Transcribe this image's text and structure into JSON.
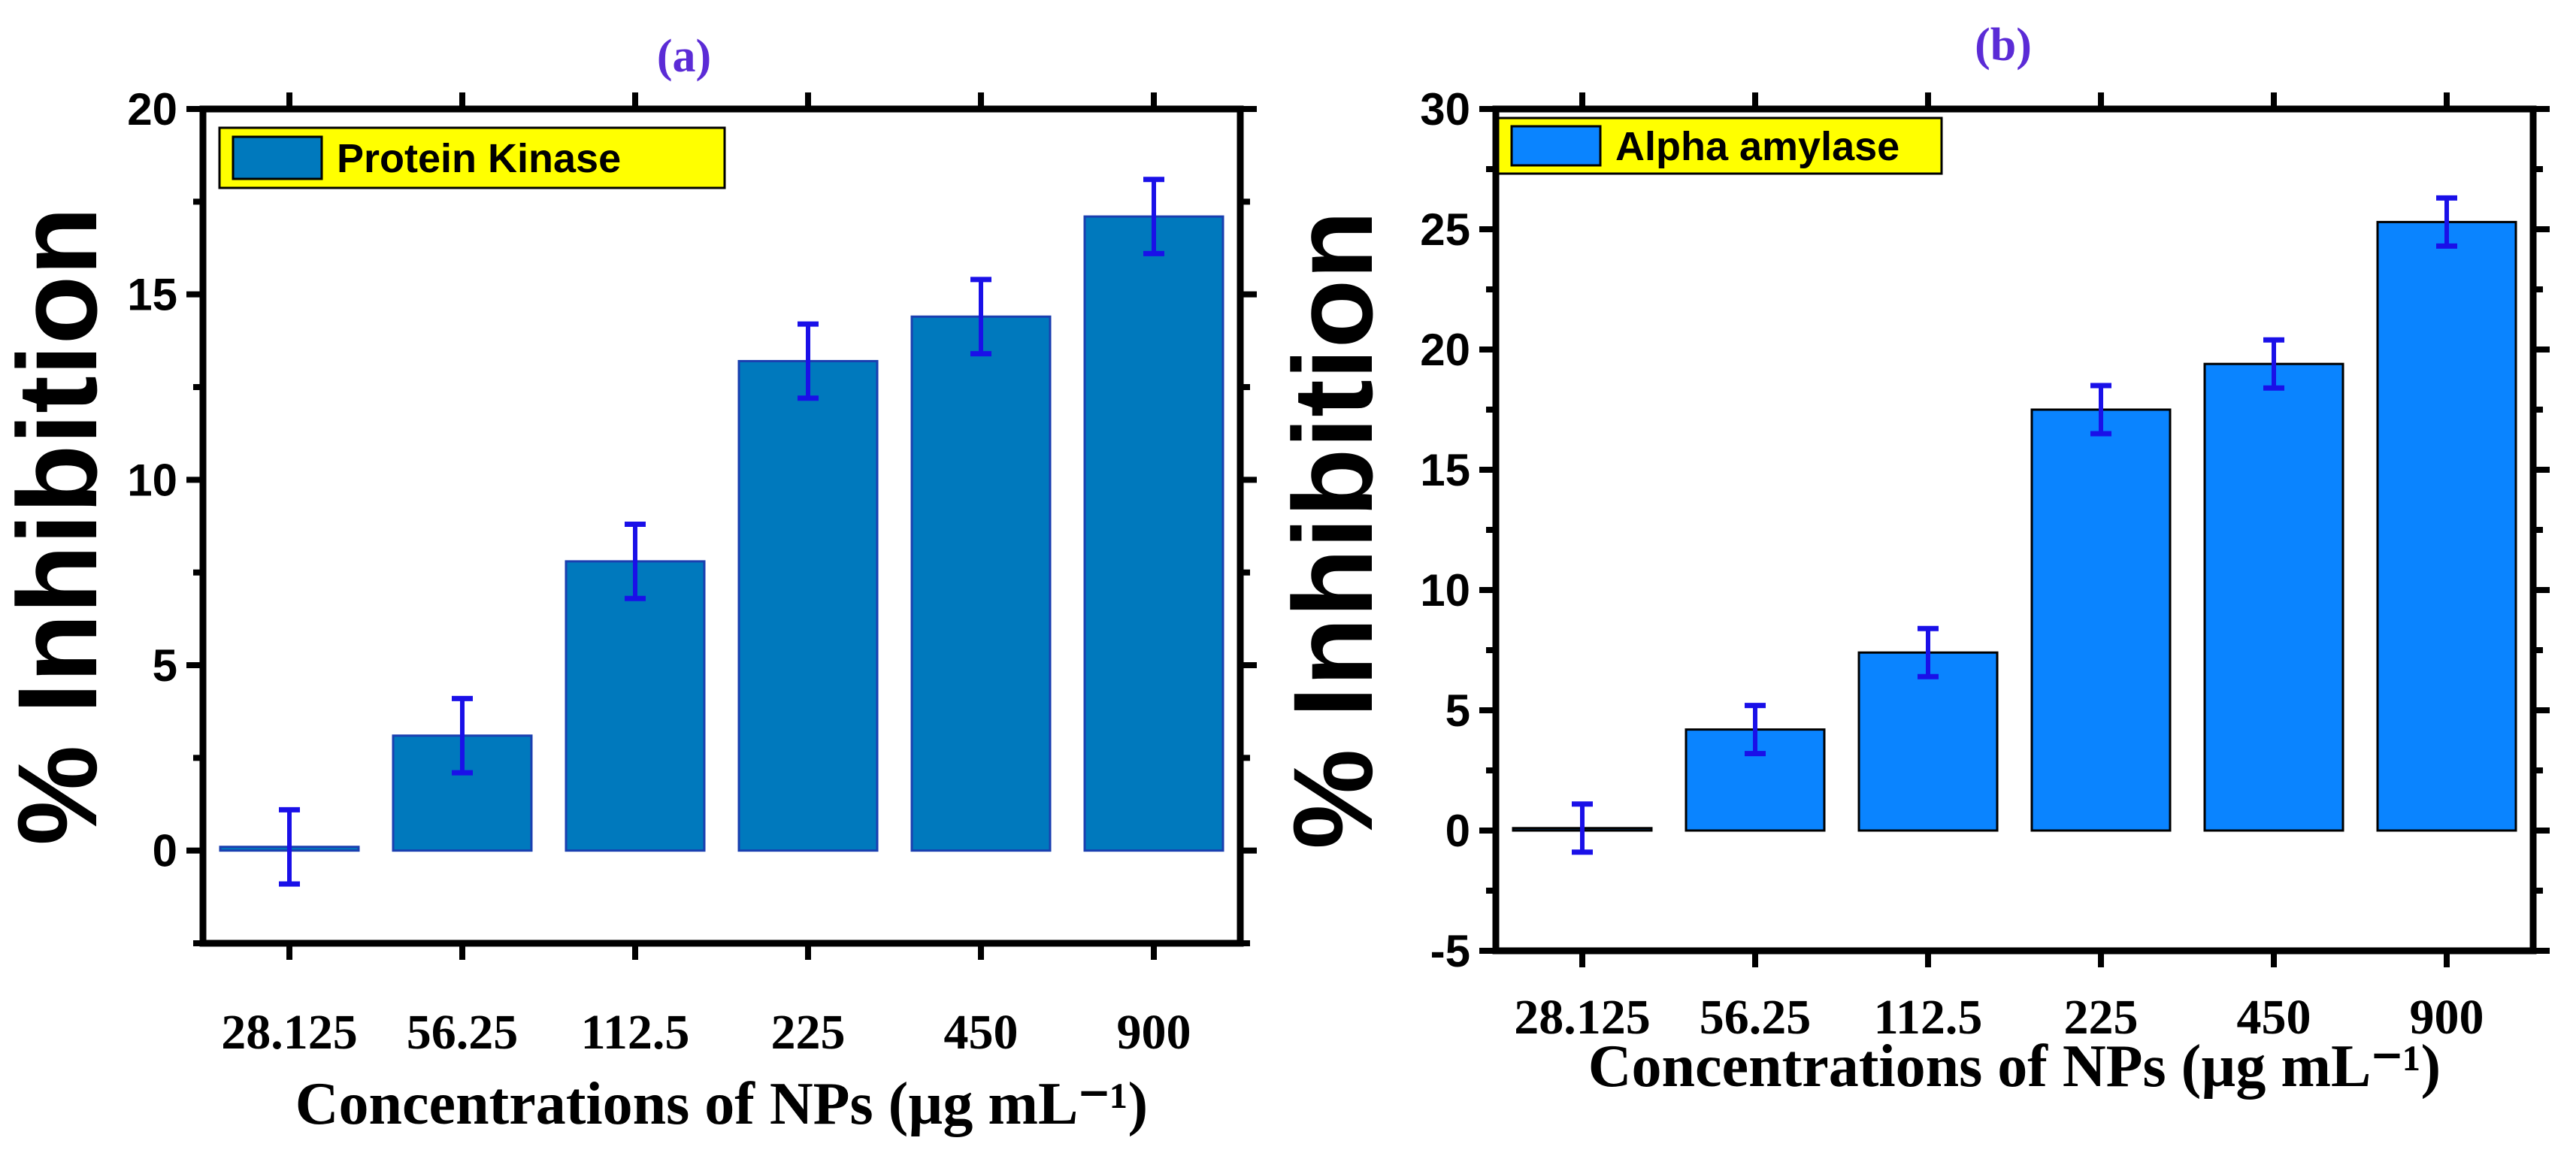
{
  "chart_data": [
    {
      "panel_label": "(a)",
      "type": "bar",
      "categories": [
        "28.125",
        "56.25",
        "112.5",
        "225",
        "450",
        "900"
      ],
      "series": [
        {
          "name": "Protein Kinase",
          "values": [
            0.1,
            3.1,
            7.8,
            13.2,
            14.4,
            17.1
          ],
          "errors": [
            1.0,
            1.0,
            1.0,
            1.0,
            1.0,
            1.0
          ]
        }
      ],
      "xlabel": "Concentrations of NPs (µg mL⁻¹)",
      "ylabel": "% Inhibition",
      "ylim": [
        -2.5,
        20
      ],
      "yticks": [
        0,
        5,
        10,
        15,
        20
      ],
      "grid": false,
      "legend_position": "top-left",
      "bar_color": "#0079bd",
      "bar_edge_color": "#1a3fb0",
      "error_color": "#1a10e8",
      "legend_bg": "#ffff00"
    },
    {
      "panel_label": "(b)",
      "type": "bar",
      "categories": [
        "28.125",
        "56.25",
        "112.5",
        "225",
        "450",
        "900"
      ],
      "series": [
        {
          "name": "Alpha amylase",
          "values": [
            0.1,
            4.2,
            7.4,
            17.5,
            19.4,
            25.3
          ],
          "errors": [
            1.0,
            1.0,
            1.0,
            1.0,
            1.0,
            1.0
          ]
        }
      ],
      "xlabel": "Concentrations of NPs (µg mL⁻¹)",
      "ylabel": "% Inhibition",
      "ylim": [
        -5,
        30
      ],
      "yticks": [
        -5,
        0,
        5,
        10,
        15,
        20,
        25,
        30
      ],
      "grid": false,
      "legend_position": "top-left",
      "bar_color": "#0a84ff",
      "bar_edge_color": "#000000",
      "error_color": "#1a10e8",
      "legend_bg": "#ffff00"
    }
  ]
}
